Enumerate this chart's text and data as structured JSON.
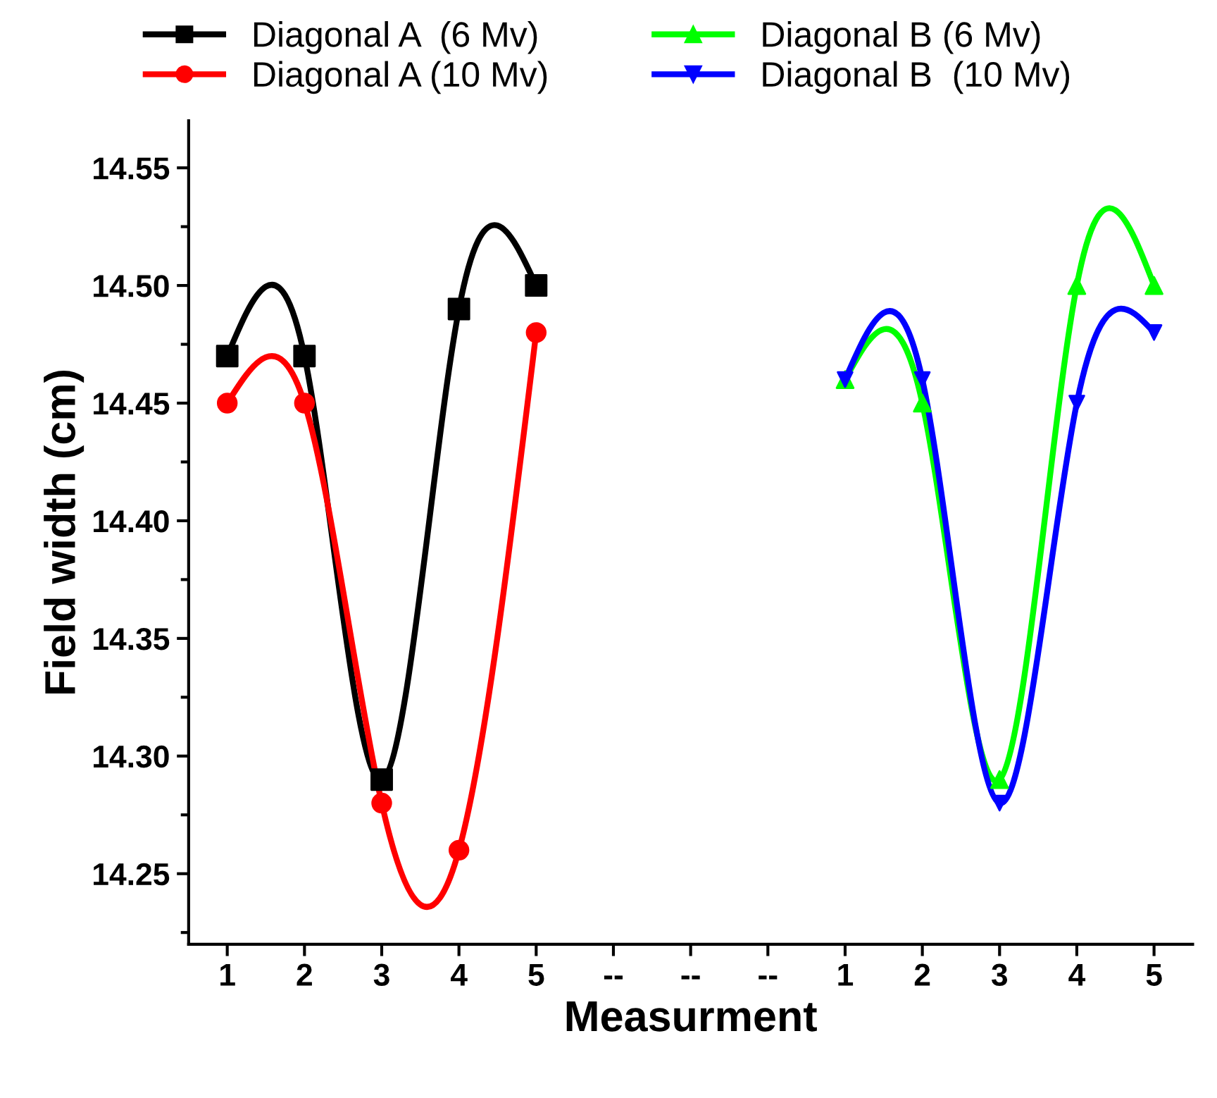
{
  "chart_data": {
    "type": "line",
    "xlabel": "Measurment",
    "ylabel": "Field width (cm)",
    "categories": [
      "1",
      "2",
      "3",
      "4",
      "5",
      "--",
      "--",
      "--",
      "1",
      "2",
      "3",
      "4",
      "5"
    ],
    "series": [
      {
        "name": "Diagonal A  (6 Mv)",
        "color": "#000000",
        "marker": "square",
        "values": [
          14.47,
          14.47,
          14.29,
          14.49,
          14.5,
          null,
          null,
          null,
          null,
          null,
          null,
          null,
          null
        ]
      },
      {
        "name": "Diagonal A (10 Mv)",
        "color": "#ff0000",
        "marker": "circle",
        "values": [
          14.45,
          14.45,
          14.28,
          14.26,
          14.48,
          null,
          null,
          null,
          null,
          null,
          null,
          null,
          null
        ]
      },
      {
        "name": "Diagonal B (6 Mv)",
        "color": "#00ff00",
        "marker": "triangle",
        "values": [
          null,
          null,
          null,
          null,
          null,
          null,
          null,
          null,
          14.46,
          14.45,
          14.29,
          14.5,
          14.5
        ]
      },
      {
        "name": "Diagonal B  (10 Mv)",
        "color": "#0000ff",
        "marker": "triangle_down",
        "values": [
          null,
          null,
          null,
          null,
          null,
          null,
          null,
          null,
          14.46,
          14.46,
          14.28,
          14.45,
          14.48
        ]
      }
    ],
    "ylim": [
      14.22,
      14.57
    ],
    "yticks": [
      {
        "value": 14.25,
        "label": "14.25"
      },
      {
        "value": 14.3,
        "label": "14.30"
      },
      {
        "value": 14.35,
        "label": "14.35"
      },
      {
        "value": 14.4,
        "label": "14.40"
      },
      {
        "value": 14.45,
        "label": "14.45"
      },
      {
        "value": 14.5,
        "label": "14.50"
      },
      {
        "value": 14.55,
        "label": "14.55"
      }
    ],
    "grid": false,
    "legend": "top",
    "line_style": "solid"
  }
}
